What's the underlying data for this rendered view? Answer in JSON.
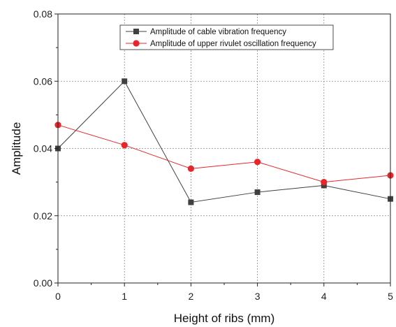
{
  "chart_data": {
    "type": "line",
    "title": "",
    "xlabel": "Height of ribs (mm)",
    "ylabel": "Amplitude",
    "xlim": [
      0,
      5
    ],
    "ylim": [
      0,
      0.08
    ],
    "x": [
      0,
      1,
      2,
      3,
      4,
      5
    ],
    "x_tick_labels": [
      "0",
      "1",
      "2",
      "3",
      "4",
      "5"
    ],
    "y_ticks": [
      0,
      0.02,
      0.04,
      0.06,
      0.08
    ],
    "y_tick_labels": [
      "0.00",
      "0.02",
      "0.04",
      "0.06",
      "0.08"
    ],
    "grid": true,
    "legend_position": "top-right",
    "series": [
      {
        "name": "Amplitude of cable vibration frequency",
        "values": [
          0.04,
          0.06,
          0.024,
          0.027,
          0.029,
          0.025
        ],
        "color": "#404040",
        "marker": "square"
      },
      {
        "name": "Amplitude of upper rivulet oscillation frequency",
        "values": [
          0.047,
          0.041,
          0.034,
          0.036,
          0.03,
          0.032
        ],
        "color": "#e8262a",
        "marker": "circle"
      }
    ]
  }
}
